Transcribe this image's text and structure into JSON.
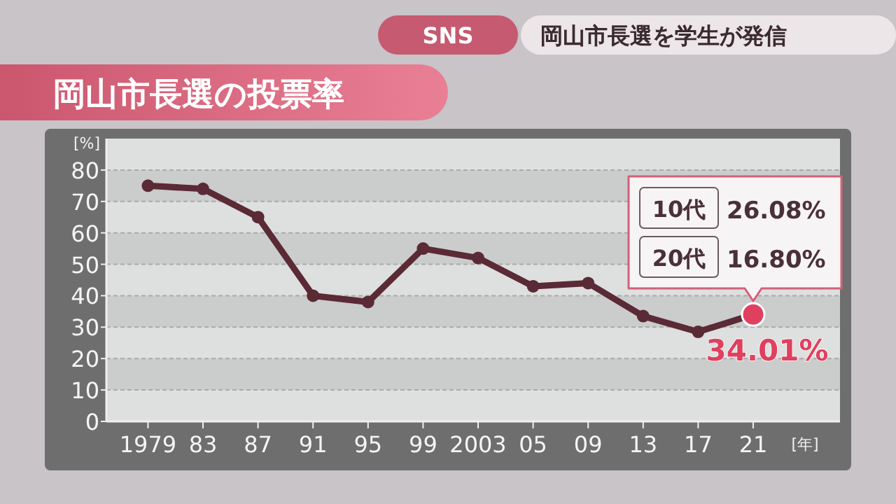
{
  "chart_data": {
    "type": "line",
    "title": "岡山市長選の投票率",
    "subtitle": "岡山市長選を学生が発信",
    "annotations": [
      "SNS",
      "10代",
      "26.08%",
      "20代",
      "16.80%"
    ],
    "ylabel": "[%]",
    "xlabel": "[年]",
    "categories": [
      "1979",
      "83",
      "87",
      "91",
      "95",
      "99",
      "2003",
      "05",
      "09",
      "13",
      "17",
      "21"
    ],
    "series": [
      {
        "color": "#5a2a35",
        "colors": [
          "#5a2a35",
          "#5a2a35",
          "#5a2a35",
          "#5a2a35",
          "#5a2a35",
          "#5a2a35",
          "#5a2a35",
          "#5a2a35",
          "#5a2a35",
          "#5a2a35",
          "#5a2a35",
          "#e0405f"
        ],
        "values": [
          75,
          74,
          65,
          40,
          38,
          55,
          52,
          43,
          44,
          33.5,
          28.5,
          34.01
        ],
        "value_labels": [
          null,
          null,
          null,
          null,
          null,
          null,
          null,
          null,
          null,
          null,
          null,
          "34.01%"
        ]
      }
    ],
    "ylim": [
      0,
      90
    ],
    "yticks": [
      0,
      10,
      20,
      30,
      40,
      50,
      60,
      70,
      80
    ],
    "grid": "y",
    "marker": "circle",
    "line_style": "solid"
  }
}
